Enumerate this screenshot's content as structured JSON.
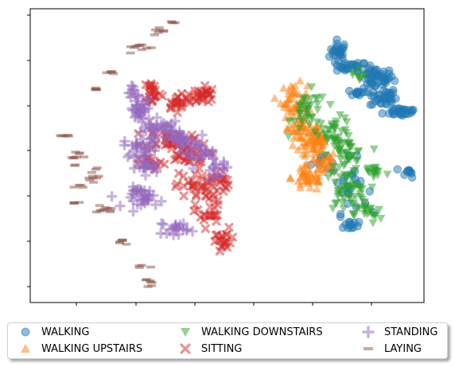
{
  "chart_data": {
    "type": "scatter",
    "title": "",
    "xlabel": "",
    "ylabel": "",
    "x_ticks_labeled": false,
    "y_ticks_labeled": false,
    "xlim": [
      -6,
      100
    ],
    "ylim": [
      -6,
      100
    ],
    "grid": false,
    "legend_position": "bottom (below plot, 3 columns, shadowed)",
    "series": [
      {
        "name": "WALKING",
        "marker": "circle",
        "color": "#1f77b4",
        "clusters": [
          {
            "cx": 77,
            "cy": 84,
            "rx": 2,
            "ry": 4,
            "n": 28
          },
          {
            "cx": 81,
            "cy": 79,
            "rx": 3,
            "ry": 1.5,
            "n": 22
          },
          {
            "cx": 87,
            "cy": 75,
            "rx": 4,
            "ry": 3,
            "n": 45
          },
          {
            "cx": 89,
            "cy": 68,
            "rx": 3,
            "ry": 3,
            "n": 35
          },
          {
            "cx": 94,
            "cy": 63,
            "rx": 4,
            "ry": 1.5,
            "n": 30
          },
          {
            "cx": 82,
            "cy": 70,
            "rx": 2,
            "ry": 1.5,
            "n": 12
          },
          {
            "cx": 96,
            "cy": 41,
            "rx": 1.5,
            "ry": 1.5,
            "n": 10
          },
          {
            "cx": 80,
            "cy": 36,
            "rx": 4,
            "ry": 8,
            "n": 25
          },
          {
            "cx": 80,
            "cy": 22,
            "rx": 2,
            "ry": 2,
            "n": 12
          },
          {
            "cx": 72,
            "cy": 45,
            "rx": 2,
            "ry": 3,
            "n": 8
          }
        ]
      },
      {
        "name": "WALKING UPSTAIRS",
        "marker": "triangle-up",
        "color": "#ff7f0e",
        "clusters": [
          {
            "cx": 65,
            "cy": 67,
            "rx": 3,
            "ry": 5,
            "n": 40
          },
          {
            "cx": 67,
            "cy": 57,
            "rx": 4,
            "ry": 5,
            "n": 50
          },
          {
            "cx": 71,
            "cy": 52,
            "rx": 3,
            "ry": 4,
            "n": 40
          },
          {
            "cx": 69,
            "cy": 39,
            "rx": 4,
            "ry": 4,
            "n": 45
          },
          {
            "cx": 73,
            "cy": 45,
            "rx": 3,
            "ry": 3,
            "n": 25
          }
        ]
      },
      {
        "name": "WALKING DOWNSTAIRS",
        "marker": "triangle-down",
        "color": "#2ca02c",
        "clusters": [
          {
            "cx": 69,
            "cy": 63,
            "rx": 4,
            "ry": 6,
            "n": 35
          },
          {
            "cx": 76,
            "cy": 56,
            "rx": 4,
            "ry": 4,
            "n": 35
          },
          {
            "cx": 79,
            "cy": 47,
            "rx": 4,
            "ry": 5,
            "n": 45
          },
          {
            "cx": 79,
            "cy": 34,
            "rx": 5,
            "ry": 6,
            "n": 45
          },
          {
            "cx": 85,
            "cy": 26,
            "rx": 3,
            "ry": 3,
            "n": 20
          },
          {
            "cx": 87,
            "cy": 41,
            "rx": 3,
            "ry": 3,
            "n": 15
          },
          {
            "cx": 82,
            "cy": 76,
            "rx": 2,
            "ry": 3,
            "n": 8
          }
        ]
      },
      {
        "name": "SITTING",
        "marker": "x",
        "color": "#d62728",
        "clusters": [
          {
            "cx": 27,
            "cy": 70,
            "rx": 2,
            "ry": 4,
            "n": 25
          },
          {
            "cx": 34,
            "cy": 66,
            "rx": 3,
            "ry": 2,
            "n": 20
          },
          {
            "cx": 40,
            "cy": 69,
            "rx": 3,
            "ry": 3,
            "n": 30
          },
          {
            "cx": 31,
            "cy": 53,
            "rx": 5,
            "ry": 3,
            "n": 35
          },
          {
            "cx": 36,
            "cy": 47,
            "rx": 5,
            "ry": 4,
            "n": 35
          },
          {
            "cx": 39,
            "cy": 36,
            "rx": 5,
            "ry": 4,
            "n": 35
          },
          {
            "cx": 45,
            "cy": 38,
            "rx": 2,
            "ry": 4,
            "n": 15
          },
          {
            "cx": 42,
            "cy": 26,
            "rx": 3,
            "ry": 4,
            "n": 20
          },
          {
            "cx": 46,
            "cy": 16,
            "rx": 3,
            "ry": 4,
            "n": 20
          },
          {
            "cx": 27,
            "cy": 44,
            "rx": 3,
            "ry": 2,
            "n": 15
          }
        ]
      },
      {
        "name": "STANDING",
        "marker": "plus",
        "color": "#9467bd",
        "clusters": [
          {
            "cx": 24,
            "cy": 63,
            "rx": 3,
            "ry": 4,
            "n": 30
          },
          {
            "cx": 29,
            "cy": 57,
            "rx": 4,
            "ry": 2,
            "n": 30
          },
          {
            "cx": 24,
            "cy": 50,
            "rx": 4,
            "ry": 3,
            "n": 30
          },
          {
            "cx": 34,
            "cy": 53,
            "rx": 4,
            "ry": 2,
            "n": 30
          },
          {
            "cx": 39,
            "cy": 48,
            "rx": 4,
            "ry": 3,
            "n": 25
          },
          {
            "cx": 26,
            "cy": 43,
            "rx": 3,
            "ry": 2,
            "n": 20
          },
          {
            "cx": 25,
            "cy": 32,
            "rx": 4,
            "ry": 3,
            "n": 35
          },
          {
            "cx": 33,
            "cy": 21,
            "rx": 3,
            "ry": 2,
            "n": 20
          },
          {
            "cx": 44,
            "cy": 42,
            "rx": 3,
            "ry": 3,
            "n": 15
          },
          {
            "cx": 22,
            "cy": 70,
            "rx": 2,
            "ry": 2,
            "n": 10
          }
        ]
      },
      {
        "name": "LAYING",
        "marker": "dash",
        "color": "#8c564b",
        "clusters": [
          {
            "cx": 33,
            "cy": 95,
            "rx": 1,
            "ry": 0.5,
            "n": 4
          },
          {
            "cx": 29,
            "cy": 92,
            "rx": 2,
            "ry": 0.8,
            "n": 7
          },
          {
            "cx": 23,
            "cy": 86,
            "rx": 3,
            "ry": 1.5,
            "n": 10
          },
          {
            "cx": 16,
            "cy": 77,
            "rx": 1,
            "ry": 0.5,
            "n": 5
          },
          {
            "cx": 12,
            "cy": 71,
            "rx": 1,
            "ry": 0.5,
            "n": 5
          },
          {
            "cx": 3,
            "cy": 54,
            "rx": 1.2,
            "ry": 0.5,
            "n": 5
          },
          {
            "cx": 6,
            "cy": 47,
            "rx": 1.5,
            "ry": 2.5,
            "n": 10
          },
          {
            "cx": 11,
            "cy": 40,
            "rx": 1.5,
            "ry": 3,
            "n": 10
          },
          {
            "cx": 7,
            "cy": 36,
            "rx": 1,
            "ry": 0.5,
            "n": 4
          },
          {
            "cx": 6,
            "cy": 30,
            "rx": 1,
            "ry": 0.5,
            "n": 4
          },
          {
            "cx": 14,
            "cy": 27,
            "rx": 2,
            "ry": 1.5,
            "n": 10
          },
          {
            "cx": 19,
            "cy": 16,
            "rx": 1,
            "ry": 1,
            "n": 6
          },
          {
            "cx": 24,
            "cy": 7,
            "rx": 1.5,
            "ry": 0.5,
            "n": 4
          },
          {
            "cx": 26,
            "cy": 1,
            "rx": 1.5,
            "ry": 2,
            "n": 7
          }
        ]
      }
    ]
  },
  "legend": {
    "items": [
      {
        "label": "WALKING",
        "marker": "circle",
        "color": "#1f77b4"
      },
      {
        "label": "WALKING UPSTAIRS",
        "marker": "triangle-up",
        "color": "#ff7f0e"
      },
      {
        "label": "WALKING DOWNSTAIRS",
        "marker": "triangle-down",
        "color": "#2ca02c"
      },
      {
        "label": "SITTING",
        "marker": "x",
        "color": "#d62728"
      },
      {
        "label": "STANDING",
        "marker": "plus",
        "color": "#9467bd"
      },
      {
        "label": "LAYING",
        "marker": "dash",
        "color": "#8c564b"
      }
    ]
  }
}
